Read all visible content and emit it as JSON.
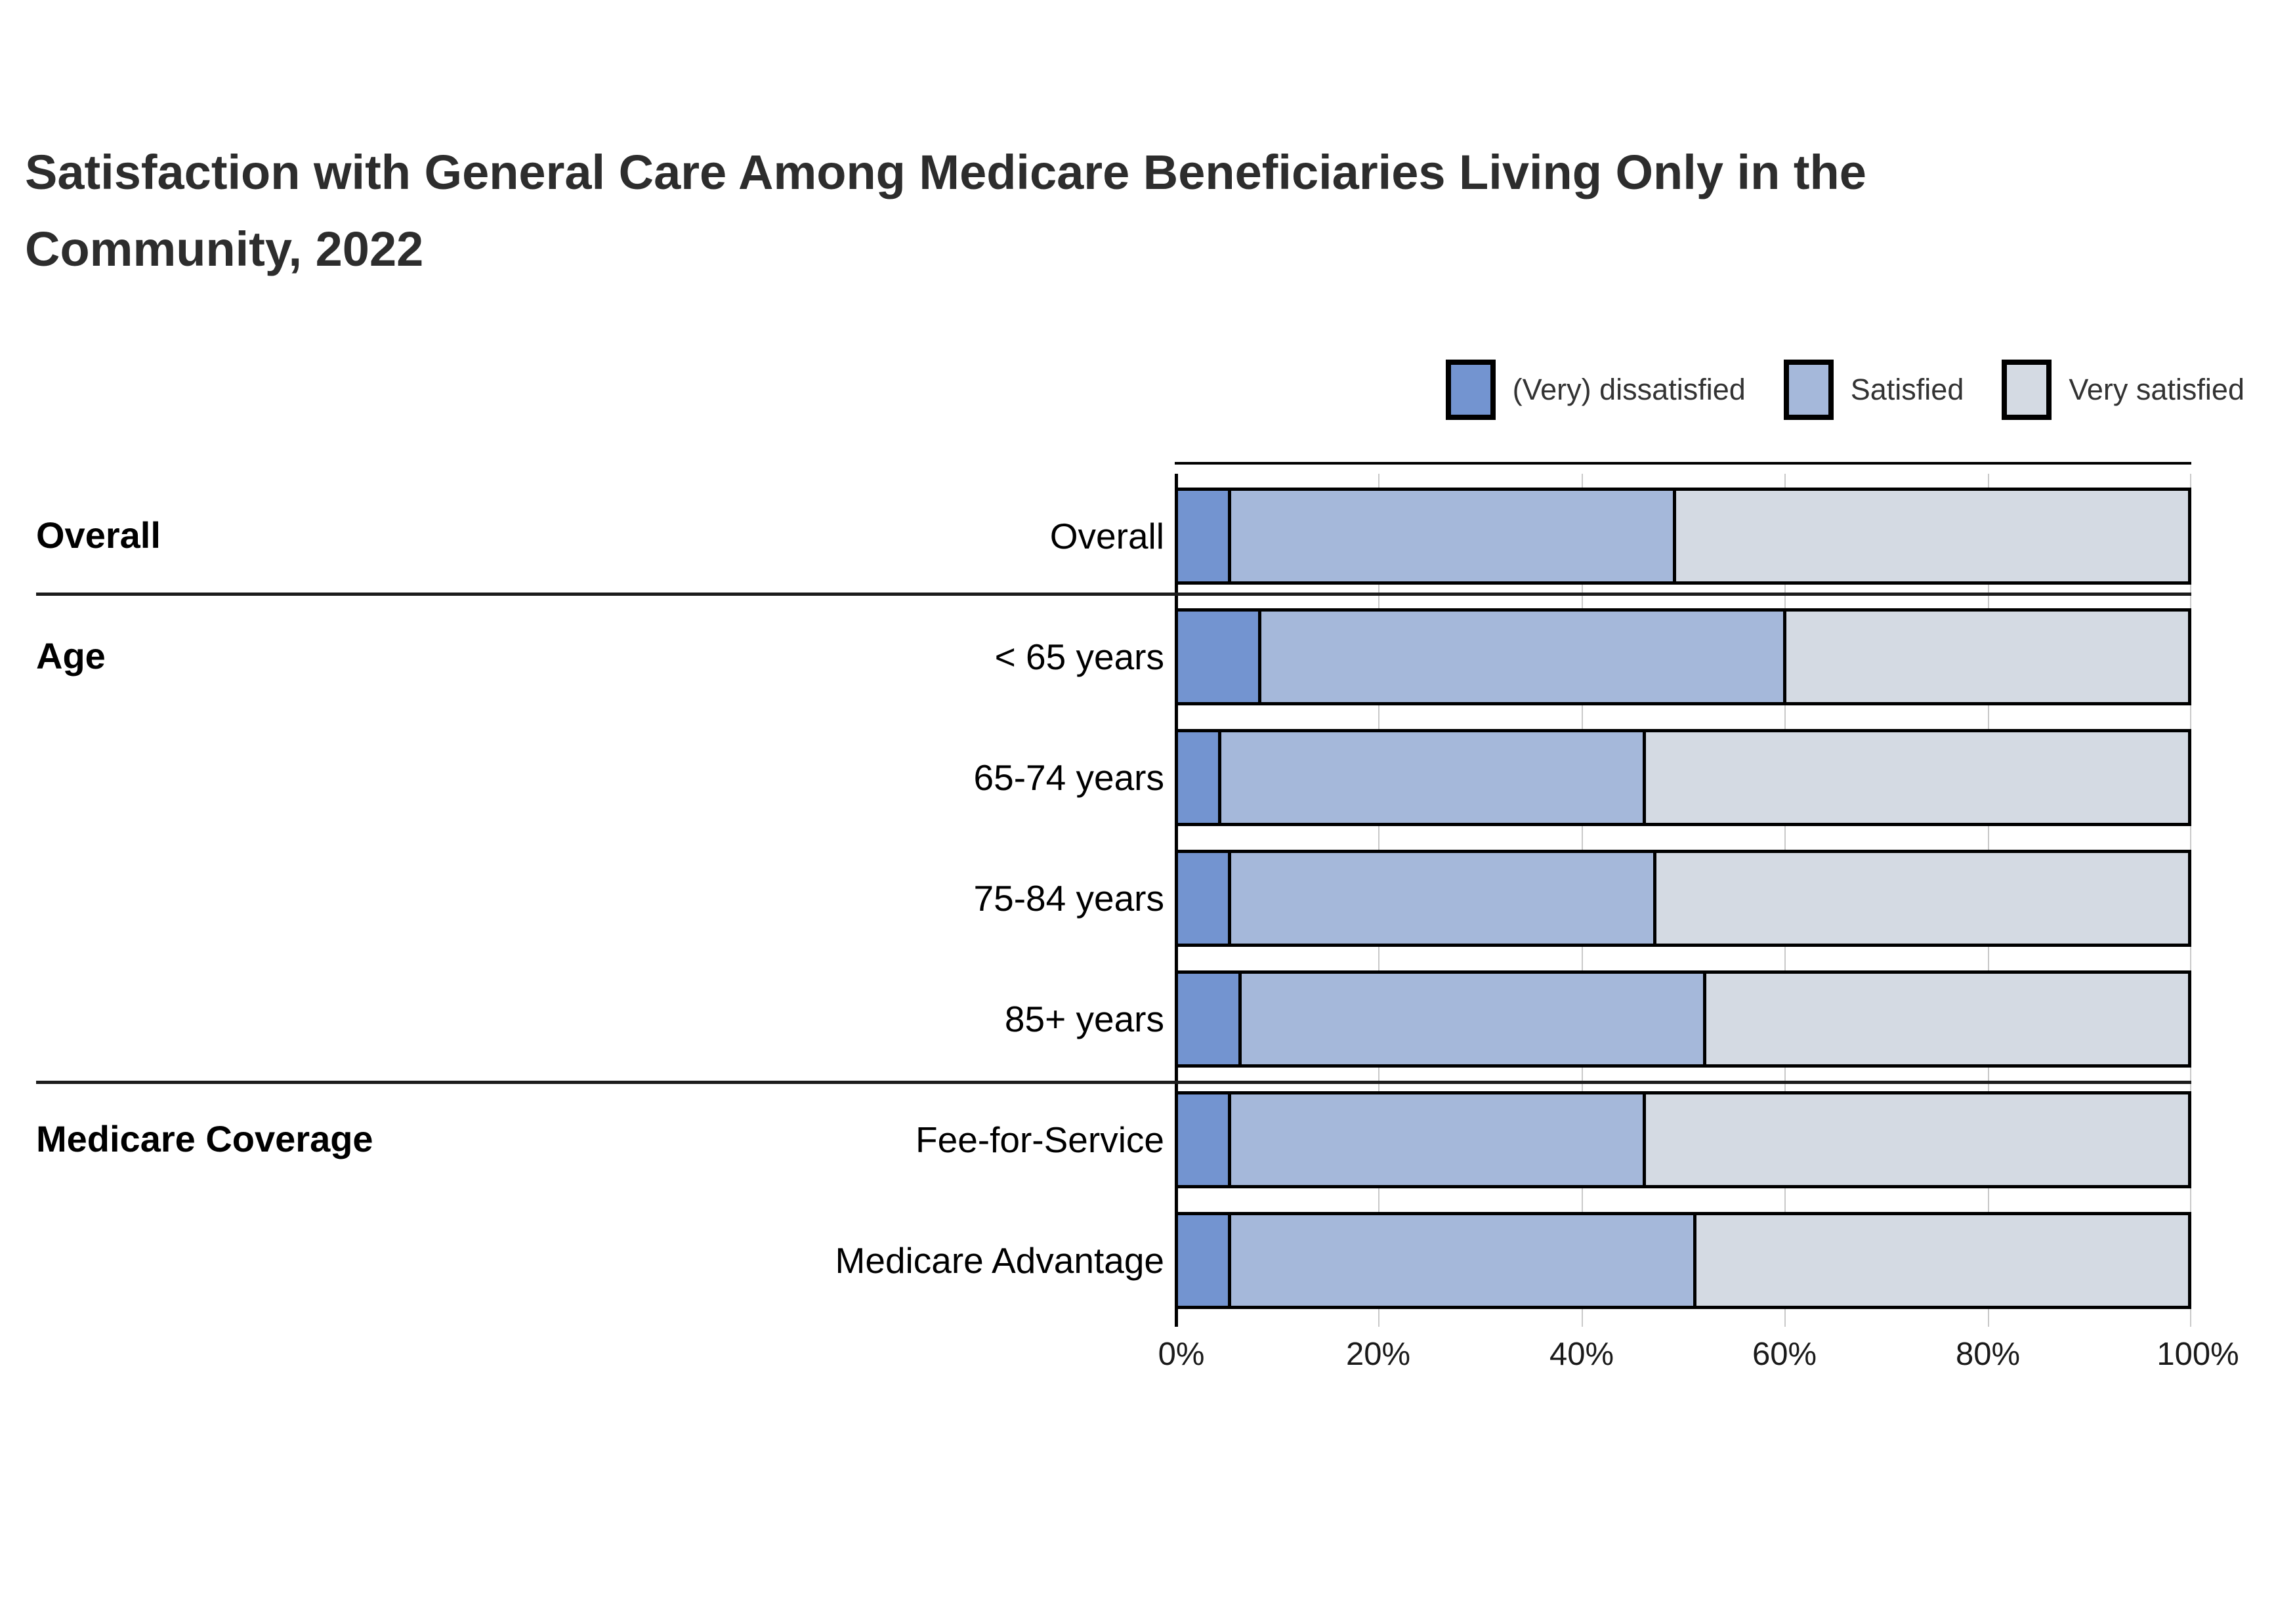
{
  "title": {
    "line1": "Satisfaction with General Care Among Medicare Beneficiaries Living Only in the",
    "line2": "Community, 2022",
    "color": "#2d2d2d"
  },
  "legend": {
    "items": [
      {
        "label": "(Very) dissatisfied",
        "color": "#7394d0"
      },
      {
        "label": "Satisfied",
        "color": "#a5b8da"
      },
      {
        "label": "Very satisfied",
        "color": "#d4dae3"
      }
    ]
  },
  "groups": [
    {
      "label": "Overall"
    },
    {
      "label": "Age"
    },
    {
      "label": "Medicare Coverage"
    }
  ],
  "axis": {
    "ticks": [
      "0%",
      "20%",
      "40%",
      "60%",
      "80%",
      "100%"
    ]
  },
  "chart_data": {
    "type": "bar",
    "orientation": "horizontal",
    "stacked": true,
    "unit": "percent",
    "title": "Satisfaction with General Care Among Medicare Beneficiaries Living Only in the Community, 2022",
    "categories": [
      "Overall",
      "< 65 years",
      "65-74 years",
      "75-84 years",
      "85+ years",
      "Fee-for-Service",
      "Medicare Advantage"
    ],
    "category_groups": [
      "Overall",
      "Age",
      "Age",
      "Age",
      "Age",
      "Medicare Coverage",
      "Medicare Coverage"
    ],
    "series": [
      {
        "name": "(Very) dissatisfied",
        "color": "#7394d0",
        "values": [
          5,
          8,
          4,
          5,
          6,
          5,
          5
        ]
      },
      {
        "name": "Satisfied",
        "color": "#a5b8da",
        "values": [
          44,
          52,
          42,
          42,
          46,
          41,
          46
        ]
      },
      {
        "name": "Very satisfied",
        "color": "#d4dae3",
        "values": [
          51,
          40,
          54,
          53,
          48,
          54,
          49
        ]
      }
    ],
    "xlim": [
      0,
      100
    ],
    "x_ticks": [
      "0%",
      "20%",
      "40%",
      "60%",
      "80%",
      "100%"
    ],
    "grid": true,
    "legend_position": "top-right"
  }
}
